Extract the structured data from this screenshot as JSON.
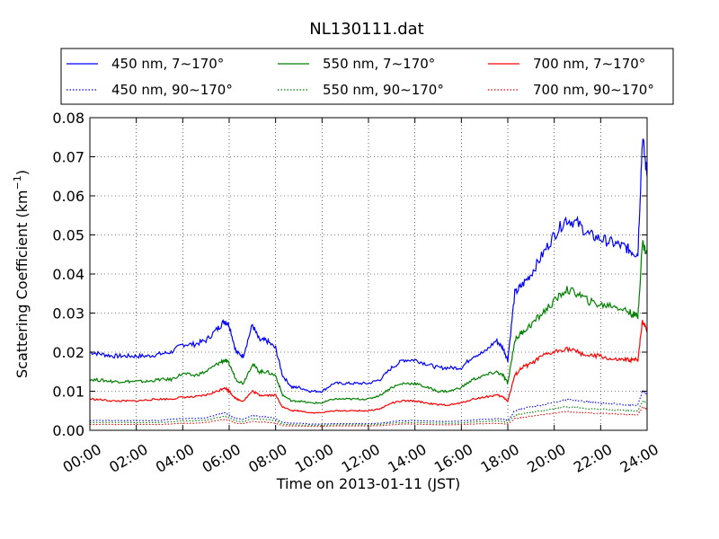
{
  "chart_data": {
    "type": "line",
    "title": "NL130111.dat",
    "xlabel": "Time on 2013-01-11 (JST)",
    "ylabel": "Scattering Coefficient (km",
    "ylabel_superscript": "−1",
    "ylabel_suffix": ")",
    "xlim_hours": [
      0,
      24
    ],
    "ylim": [
      0,
      0.08
    ],
    "grid": true,
    "legend_position": "top",
    "x_ticks": [
      "00:00",
      "02:00",
      "04:00",
      "06:00",
      "08:00",
      "10:00",
      "12:00",
      "14:00",
      "16:00",
      "18:00",
      "20:00",
      "22:00",
      "24:00"
    ],
    "y_ticks": [
      "0.00",
      "0.01",
      "0.02",
      "0.03",
      "0.04",
      "0.05",
      "0.06",
      "0.07",
      "0.08"
    ],
    "x_hours": [
      0,
      0.5,
      1,
      1.5,
      2,
      2.5,
      3,
      3.5,
      4,
      4.5,
      5,
      5.5,
      5.8,
      6,
      6.3,
      6.6,
      7,
      7.3,
      7.6,
      8,
      8.3,
      8.7,
      9,
      9.5,
      10,
      10.5,
      11,
      11.5,
      12,
      12.5,
      13,
      13.5,
      14,
      14.5,
      15,
      15.5,
      16,
      16.5,
      17,
      17.5,
      17.8,
      18,
      18.3,
      18.6,
      19,
      19.5,
      20,
      20.5,
      21,
      21.5,
      22,
      22.5,
      23,
      23.3,
      23.6,
      23.8,
      24
    ],
    "series": [
      {
        "name": "450 nm, 7∼170°",
        "color": "#0000ff",
        "style": "solid",
        "values": [
          0.02,
          0.0195,
          0.019,
          0.019,
          0.019,
          0.019,
          0.0195,
          0.02,
          0.022,
          0.022,
          0.023,
          0.026,
          0.028,
          0.027,
          0.02,
          0.019,
          0.027,
          0.023,
          0.023,
          0.021,
          0.014,
          0.011,
          0.011,
          0.01,
          0.01,
          0.012,
          0.012,
          0.012,
          0.012,
          0.013,
          0.016,
          0.018,
          0.018,
          0.017,
          0.016,
          0.016,
          0.016,
          0.019,
          0.02,
          0.023,
          0.021,
          0.018,
          0.035,
          0.037,
          0.04,
          0.045,
          0.05,
          0.054,
          0.053,
          0.05,
          0.049,
          0.048,
          0.047,
          0.046,
          0.045,
          0.075,
          0.065
        ]
      },
      {
        "name": "550 nm, 7∼170°",
        "color": "#008000",
        "style": "solid",
        "values": [
          0.013,
          0.0128,
          0.0125,
          0.0125,
          0.0125,
          0.0125,
          0.013,
          0.013,
          0.0145,
          0.014,
          0.015,
          0.017,
          0.018,
          0.017,
          0.013,
          0.012,
          0.017,
          0.015,
          0.015,
          0.014,
          0.009,
          0.0075,
          0.0075,
          0.007,
          0.007,
          0.008,
          0.008,
          0.008,
          0.008,
          0.009,
          0.011,
          0.012,
          0.012,
          0.011,
          0.01,
          0.01,
          0.011,
          0.013,
          0.014,
          0.015,
          0.014,
          0.012,
          0.023,
          0.025,
          0.027,
          0.03,
          0.033,
          0.036,
          0.035,
          0.033,
          0.032,
          0.032,
          0.031,
          0.03,
          0.029,
          0.048,
          0.045
        ]
      },
      {
        "name": "700 nm, 7∼170°",
        "color": "#ff0000",
        "style": "solid",
        "values": [
          0.008,
          0.0078,
          0.0075,
          0.0075,
          0.0075,
          0.0078,
          0.008,
          0.008,
          0.0085,
          0.0085,
          0.009,
          0.01,
          0.011,
          0.01,
          0.008,
          0.0075,
          0.01,
          0.009,
          0.009,
          0.009,
          0.006,
          0.005,
          0.005,
          0.0045,
          0.0045,
          0.005,
          0.005,
          0.005,
          0.005,
          0.0055,
          0.007,
          0.0075,
          0.0075,
          0.007,
          0.0065,
          0.0065,
          0.007,
          0.008,
          0.0085,
          0.009,
          0.0085,
          0.0075,
          0.014,
          0.016,
          0.017,
          0.019,
          0.02,
          0.021,
          0.02,
          0.019,
          0.019,
          0.018,
          0.018,
          0.018,
          0.018,
          0.028,
          0.026
        ]
      },
      {
        "name": "450 nm, 90∼170°",
        "color": "#0000ff",
        "style": "dotted",
        "values": [
          0.0025,
          0.0025,
          0.0025,
          0.0025,
          0.0025,
          0.0025,
          0.0025,
          0.0028,
          0.003,
          0.003,
          0.0032,
          0.004,
          0.0045,
          0.004,
          0.003,
          0.0028,
          0.0038,
          0.0035,
          0.0035,
          0.003,
          0.002,
          0.0018,
          0.0018,
          0.0016,
          0.0016,
          0.0017,
          0.0017,
          0.0017,
          0.0017,
          0.0018,
          0.0022,
          0.0025,
          0.0025,
          0.0024,
          0.0023,
          0.0023,
          0.0024,
          0.0026,
          0.0028,
          0.003,
          0.0028,
          0.0025,
          0.005,
          0.0055,
          0.006,
          0.0065,
          0.0072,
          0.0078,
          0.0076,
          0.0072,
          0.007,
          0.0068,
          0.0066,
          0.0065,
          0.0064,
          0.01,
          0.009
        ]
      },
      {
        "name": "550 nm, 90∼170°",
        "color": "#008000",
        "style": "dotted",
        "values": [
          0.002,
          0.002,
          0.002,
          0.002,
          0.002,
          0.002,
          0.002,
          0.0022,
          0.0024,
          0.0024,
          0.0026,
          0.0032,
          0.0036,
          0.0032,
          0.0024,
          0.0022,
          0.003,
          0.0028,
          0.0028,
          0.0024,
          0.0016,
          0.0014,
          0.0014,
          0.0013,
          0.0013,
          0.0014,
          0.0014,
          0.0014,
          0.0014,
          0.0015,
          0.0018,
          0.002,
          0.002,
          0.0019,
          0.0018,
          0.0018,
          0.0019,
          0.0021,
          0.0022,
          0.0024,
          0.0022,
          0.002,
          0.0038,
          0.0042,
          0.0046,
          0.005,
          0.0055,
          0.006,
          0.0058,
          0.0055,
          0.0054,
          0.0052,
          0.0051,
          0.005,
          0.0049,
          0.0075,
          0.007
        ]
      },
      {
        "name": "700 nm, 90∼170°",
        "color": "#ff0000",
        "style": "dotted",
        "values": [
          0.0015,
          0.0015,
          0.0015,
          0.0015,
          0.0015,
          0.0015,
          0.0015,
          0.0016,
          0.0018,
          0.0018,
          0.002,
          0.0025,
          0.0028,
          0.0025,
          0.0018,
          0.0017,
          0.0023,
          0.0021,
          0.0021,
          0.0018,
          0.0012,
          0.0011,
          0.0011,
          0.001,
          0.001,
          0.0011,
          0.0011,
          0.0011,
          0.0011,
          0.0012,
          0.0014,
          0.0016,
          0.0016,
          0.0015,
          0.0014,
          0.0014,
          0.0015,
          0.0016,
          0.0017,
          0.0018,
          0.0017,
          0.0015,
          0.003,
          0.0033,
          0.0036,
          0.004,
          0.0044,
          0.0048,
          0.0046,
          0.0044,
          0.0043,
          0.0042,
          0.0041,
          0.004,
          0.0039,
          0.006,
          0.0055
        ]
      }
    ]
  }
}
